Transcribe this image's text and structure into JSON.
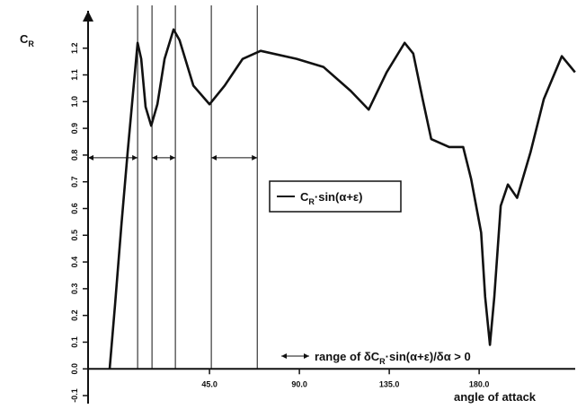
{
  "chart_data": {
    "type": "line",
    "y_label": [
      "C",
      "R"
    ],
    "x_label": "angle of attack",
    "legend_label": [
      "C",
      "R",
      "·sin(α+ε)"
    ],
    "annotation": [
      "range of δC",
      "R",
      "·sin(α+ε)/δα > 0"
    ],
    "xlim": [
      -15.8,
      228.1
    ],
    "ylim": [
      -0.13,
      1.34
    ],
    "xticks": [
      {
        "value": 45,
        "label": "45.0"
      },
      {
        "value": 90,
        "label": "90.0"
      },
      {
        "value": 135,
        "label": "135.0"
      },
      {
        "value": 180,
        "label": "180.0"
      }
    ],
    "yticks": [
      {
        "value": -0.1,
        "label": "-0.1"
      },
      {
        "value": 0,
        "label": "0.0"
      },
      0.1,
      0.2,
      0.3,
      0.4,
      0.5,
      0.6,
      0.7,
      0.8,
      0.9,
      {
        "value": 1,
        "label": "1.0"
      },
      1.1,
      1.2
    ],
    "vlines": [
      9,
      16.2,
      27.9,
      45.9,
      68.9
    ],
    "ranges": [
      [
        -15.8,
        9
      ],
      [
        16.2,
        27.9
      ],
      [
        45.9,
        68.9
      ]
    ],
    "range_level": 0.79,
    "series": [
      {
        "color": "#111111",
        "x": [
          -5,
          -2.3,
          0.9,
          4,
          6.8,
          9,
          10.8,
          13,
          15.8,
          18.9,
          22.5,
          27,
          30,
          36.9,
          45,
          52.6,
          61.6,
          70.6,
          88.6,
          102,
          115.7,
          124.7,
          133.7,
          142.7,
          147,
          151.7,
          156,
          165,
          172,
          176,
          181,
          183,
          185.4,
          187.6,
          190.8,
          194.4,
          199,
          205.7,
          212.4,
          221.4,
          228
        ],
        "values": [
          0.0,
          0.24,
          0.54,
          0.81,
          1.04,
          1.22,
          1.16,
          0.98,
          0.91,
          0.99,
          1.16,
          1.27,
          1.23,
          1.06,
          0.99,
          1.06,
          1.16,
          1.19,
          1.16,
          1.13,
          1.04,
          0.97,
          1.11,
          1.22,
          1.18,
          1.01,
          0.86,
          0.83,
          0.83,
          0.71,
          0.51,
          0.27,
          0.09,
          0.27,
          0.61,
          0.69,
          0.64,
          0.81,
          1.01,
          1.17,
          1.11
        ]
      }
    ]
  }
}
